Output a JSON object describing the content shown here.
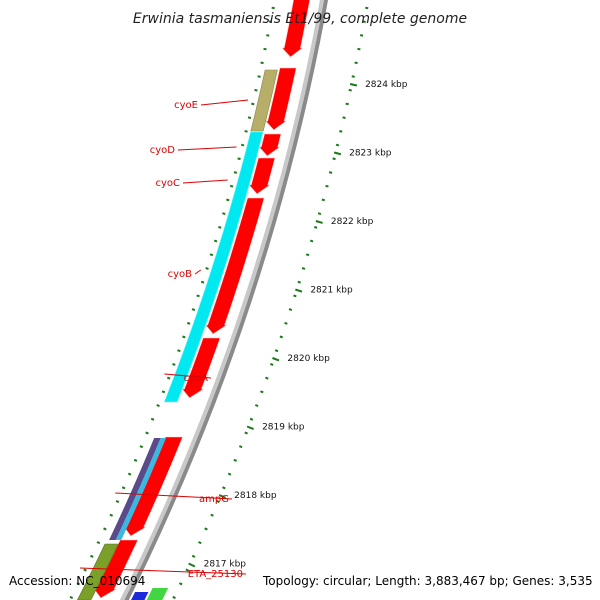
{
  "title": "Erwinia tasmaniensis Et1/99, complete genome",
  "footer": {
    "accession": "Accession: NC_010694",
    "topology": "Topology: circular; Length: 3,883,467 bp; Genes: 3,535"
  },
  "colors": {
    "forward_cds": "#ff0000",
    "cyoE": "#b7ae6a",
    "cyo_operon": "#00e8f0",
    "ampG": "#5a4a8a",
    "ETA_25130": "#7aa02a",
    "label_red": "#dd0000",
    "tick_green": "#1a7a1a",
    "backbone_grey": "#8a8a8a"
  },
  "scale": {
    "unit": "kbp",
    "ticks": [
      {
        "kbp": 2824,
        "label": "2824 kbp"
      },
      {
        "kbp": 2823,
        "label": "2823 kbp"
      },
      {
        "kbp": 2822,
        "label": "2822 kbp"
      },
      {
        "kbp": 2821,
        "label": "2821 kbp"
      },
      {
        "kbp": 2820,
        "label": "2820 kbp"
      },
      {
        "kbp": 2819,
        "label": "2819 kbp"
      },
      {
        "kbp": 2818,
        "label": "2818 kbp"
      },
      {
        "kbp": 2817,
        "label": "2817 kbp"
      }
    ]
  },
  "genes": [
    {
      "name": "cyoE",
      "label": "cyoE"
    },
    {
      "name": "cyoD",
      "label": "cyoD"
    },
    {
      "name": "cyoC",
      "label": "cyoC"
    },
    {
      "name": "cyoB",
      "label": "cyoB"
    },
    {
      "name": "cyoA",
      "label": "cyoA"
    },
    {
      "name": "ampG",
      "label": "ampG"
    },
    {
      "name": "ETA_25130",
      "label": "ETA_25130"
    }
  ]
}
